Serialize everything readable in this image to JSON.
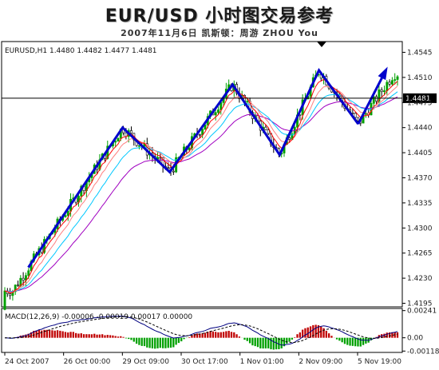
{
  "header": {
    "title": "EUR/USD 小时图交易参考",
    "subtitle": "2007年11月6日   凯斯顿：周游 ZHOU You"
  },
  "chart_data": [
    {
      "type": "candlestick",
      "info_label": "EURUSD,H1 1.4480 1.4482 1.4477 1.4481",
      "current_price": 1.4481,
      "current_price_label": "1.4481",
      "ylim": [
        1.419,
        1.456
      ],
      "y_ticks": [
        1.4545,
        1.451,
        1.4475,
        1.444,
        1.4405,
        1.437,
        1.4335,
        1.43,
        1.4265,
        1.423,
        1.4195
      ],
      "y_tick_labels": [
        "1.4545",
        "1.4510",
        "1.4475",
        "1.4440",
        "1.4405",
        "1.4370",
        "1.4335",
        "1.4300",
        "1.4265",
        "1.4230",
        "1.4195"
      ],
      "x_tick_labels": [
        "24 Oct 2007",
        "26 Oct 00:00",
        "29 Oct 09:00",
        "30 Oct 17:00",
        "1 Nov 01:00",
        "2 Nov 09:00",
        "5 Nov 19:00"
      ],
      "zigzag": [
        {
          "t": 0.06,
          "v": 1.4245
        },
        {
          "t": 0.3,
          "v": 1.444
        },
        {
          "t": 0.42,
          "v": 1.4378
        },
        {
          "t": 0.58,
          "v": 1.45
        },
        {
          "t": 0.7,
          "v": 1.4402
        },
        {
          "t": 0.8,
          "v": 1.452
        },
        {
          "t": 0.9,
          "v": 1.4445
        },
        {
          "t": 0.99,
          "v": 1.4515
        }
      ],
      "series_colors": {
        "bull": "#00a000",
        "bear": "#000000",
        "ma_fast": "#ff0000",
        "ma_mid": "#ff8080",
        "ma_slow": "#00c8ff",
        "ma_long": "#a000c0",
        "zigzag": "#0000cc",
        "price_line": "#000000"
      }
    },
    {
      "type": "macd",
      "info_label": "MACD(12,26,9) -0.00006 -0.00019 0.00017 0.00000",
      "ylim": [
        -0.0013,
        0.0026
      ],
      "y_ticks": [
        0.00241,
        0.0,
        -0.00118
      ],
      "y_tick_labels": [
        "0.00241",
        "0.00",
        "-0.00118"
      ],
      "series_colors": {
        "macd": "#000080",
        "signal": "#000000",
        "hist_pos": "#c00000",
        "hist_neg": "#00a000"
      }
    }
  ]
}
